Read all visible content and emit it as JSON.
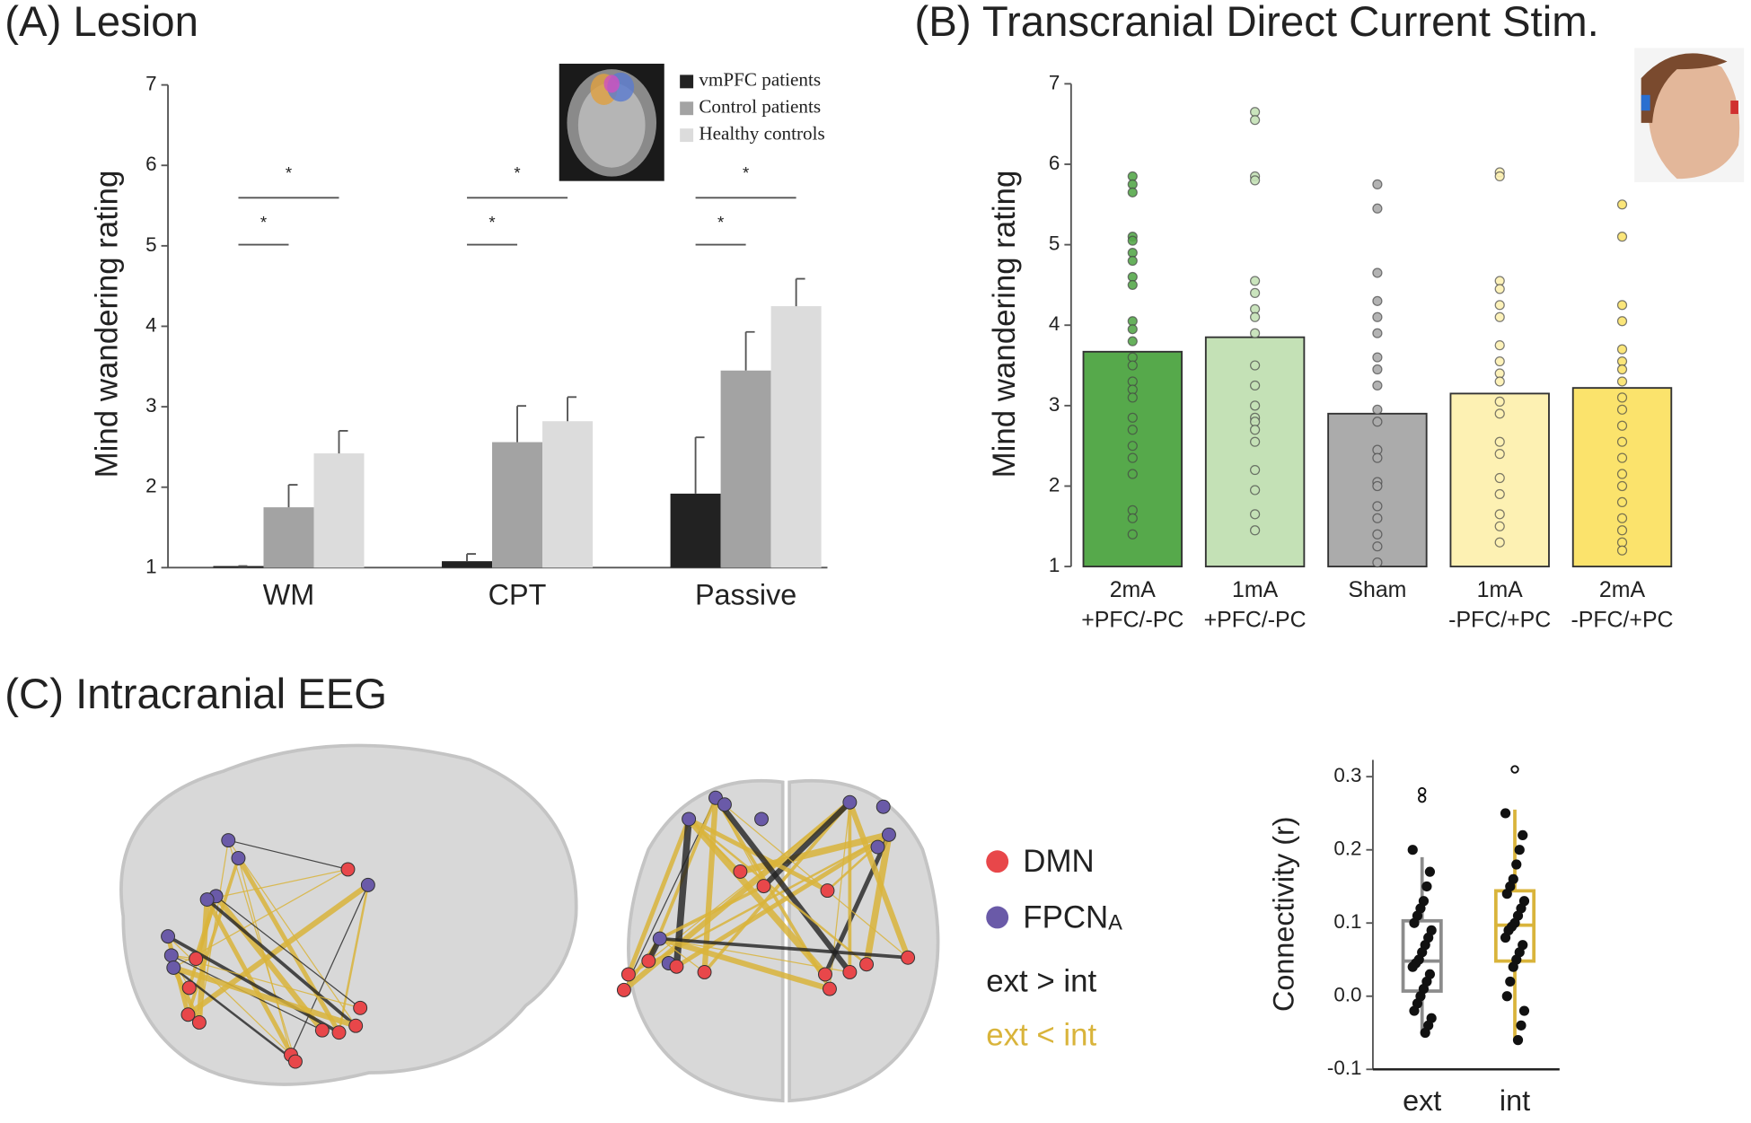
{
  "chart_data": [
    {
      "type": "bar",
      "title": "(A) Lesion",
      "ylabel": "Mind wandering rating",
      "categories": [
        "WM",
        "CPT",
        "Passive"
      ],
      "series": [
        {
          "name": "vmPFC patients",
          "color": "#222222",
          "values": [
            1.02,
            1.08,
            1.92
          ],
          "errors": [
            0,
            0.09,
            0.7
          ]
        },
        {
          "name": "Control patients",
          "color": "#a3a3a3",
          "values": [
            1.75,
            2.56,
            3.45
          ],
          "errors": [
            0.28,
            0.45,
            0.48
          ]
        },
        {
          "name": "Healthy controls",
          "color": "#dcdcdc",
          "values": [
            2.42,
            2.82,
            4.25
          ],
          "errors": [
            0.28,
            0.3,
            0.34
          ]
        }
      ],
      "ylim": [
        1,
        7
      ],
      "yticks": [
        1,
        2,
        3,
        4,
        5,
        6,
        7
      ],
      "annotations": [
        "*",
        "*",
        "*",
        "*",
        "*",
        "*"
      ]
    },
    {
      "type": "bar_points",
      "title": "(B) Transcranial Direct Current Stim.",
      "ylabel": "Mind wandering rating",
      "categories": [
        [
          "2mA",
          "+PFC/-PC"
        ],
        [
          "1mA",
          "+PFC/-PC"
        ],
        [
          "Sham"
        ],
        [
          "1mA",
          "-PFC/+PC"
        ],
        [
          "2mA",
          "-PFC/+PC"
        ]
      ],
      "values": [
        3.67,
        3.85,
        2.9,
        3.15,
        3.22
      ],
      "colors": [
        "#56a94b",
        "#c4e1b6",
        "#ababab",
        "#fdf1b3",
        "#fbe36c"
      ],
      "points": [
        [
          5.85,
          5.75,
          5.65,
          5.1,
          5.05,
          4.9,
          4.8,
          4.6,
          4.5,
          4.05,
          3.95,
          3.8,
          3.6,
          3.5,
          3.3,
          3.2,
          3.1,
          2.85,
          2.7,
          2.5,
          2.35,
          2.15,
          1.7,
          1.6,
          1.4
        ],
        [
          6.65,
          6.55,
          5.85,
          5.8,
          4.55,
          4.4,
          4.2,
          4.1,
          3.9,
          3.5,
          3.25,
          3.0,
          2.85,
          2.8,
          2.7,
          2.55,
          2.2,
          1.95,
          1.65,
          1.45
        ],
        [
          5.75,
          5.45,
          4.65,
          4.3,
          4.1,
          3.9,
          3.6,
          3.45,
          3.25,
          2.95,
          2.8,
          2.45,
          2.35,
          2.05,
          2.0,
          1.75,
          1.6,
          1.4,
          1.25,
          1.05
        ],
        [
          5.9,
          5.85,
          4.55,
          4.45,
          4.25,
          4.1,
          3.75,
          3.55,
          3.4,
          3.3,
          3.05,
          2.9,
          2.55,
          2.4,
          2.1,
          1.9,
          1.65,
          1.5,
          1.3
        ],
        [
          5.5,
          5.1,
          4.25,
          4.05,
          3.7,
          3.55,
          3.45,
          3.3,
          3.1,
          2.95,
          2.75,
          2.55,
          2.35,
          2.15,
          2.0,
          1.8,
          1.6,
          1.45,
          1.3,
          1.2
        ]
      ],
      "ylim": [
        1,
        7
      ],
      "yticks": [
        1,
        2,
        3,
        4,
        5,
        6,
        7
      ]
    },
    {
      "type": "box",
      "title": "(C) Intracranial EEG",
      "ylabel": "Connectivity (r)",
      "categories": [
        "ext",
        "int"
      ],
      "colors": [
        "#8c8c8c",
        "#d9b43b"
      ],
      "boxes": [
        {
          "whisker_low": -0.05,
          "q1": 0.007,
          "median": 0.048,
          "q3": 0.103,
          "whisker_high": 0.19
        },
        {
          "whisker_low": -0.06,
          "q1": 0.048,
          "median": 0.097,
          "q3": 0.144,
          "whisker_high": 0.255
        }
      ],
      "points": [
        [
          0.2,
          0.17,
          0.15,
          0.13,
          0.12,
          0.11,
          0.1,
          0.09,
          0.08,
          0.07,
          0.06,
          0.05,
          0.045,
          0.04,
          0.03,
          0.02,
          0.01,
          0.0,
          -0.01,
          -0.02,
          -0.03,
          -0.04,
          -0.05
        ],
        [
          0.25,
          0.22,
          0.2,
          0.18,
          0.16,
          0.15,
          0.14,
          0.13,
          0.12,
          0.11,
          0.1,
          0.095,
          0.09,
          0.08,
          0.07,
          0.06,
          0.05,
          0.04,
          0.02,
          0.0,
          -0.02,
          -0.04,
          -0.06
        ]
      ],
      "outliers": [
        [
          0.28,
          0.27
        ],
        [
          0.31
        ]
      ],
      "ylim": [
        -0.1,
        0.323
      ],
      "yticks": [
        -0.1,
        {
          "value": 0,
          "label": "0.0"
        },
        0.1,
        0.2,
        0.3
      ]
    }
  ],
  "eeg_legend": {
    "nodes": [
      {
        "label": "DMN",
        "color": "#e8474a"
      },
      {
        "label": "FPCN",
        "subscript": "A",
        "color": "#6a5aa8"
      }
    ],
    "edges": [
      {
        "label": "ext > int",
        "color": "#222222"
      },
      {
        "label": "ext < int",
        "color": "#d9b43b"
      }
    ]
  }
}
